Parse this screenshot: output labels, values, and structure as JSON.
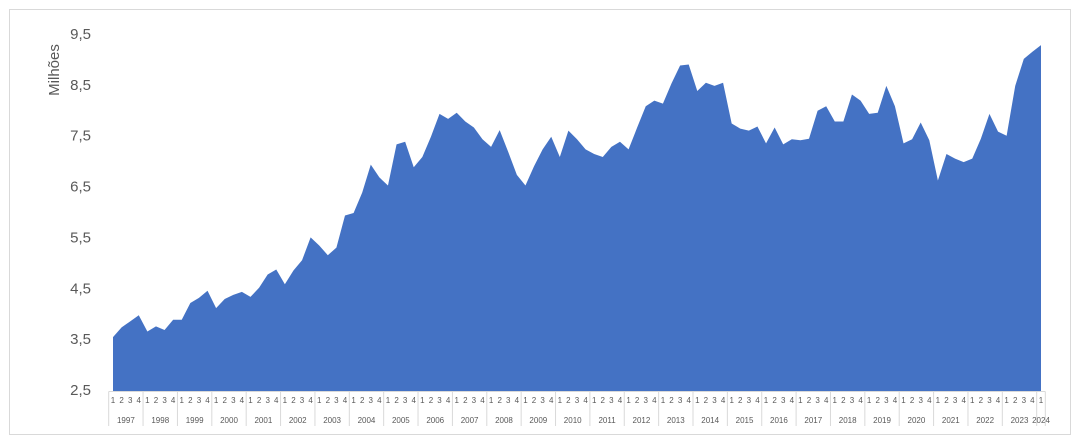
{
  "chart_data": {
    "type": "area",
    "ylabel": "Milhões",
    "color": "#4472c4",
    "ylim": [
      2.5,
      9.5
    ],
    "yticks": [
      {
        "value": 2.5,
        "label": "2,5"
      },
      {
        "value": 3.5,
        "label": "3,5"
      },
      {
        "value": 4.5,
        "label": "4,5"
      },
      {
        "value": 5.5,
        "label": "5,5"
      },
      {
        "value": 6.5,
        "label": "6,5"
      },
      {
        "value": 7.5,
        "label": "7,5"
      },
      {
        "value": 8.5,
        "label": "8,5"
      },
      {
        "value": 9.5,
        "label": "9,5"
      }
    ],
    "categories": [
      "1",
      "2",
      "3",
      "4",
      "1",
      "2",
      "3",
      "4",
      "1",
      "2",
      "3",
      "4",
      "1",
      "2",
      "3",
      "4",
      "1",
      "2",
      "3",
      "4",
      "1",
      "2",
      "3",
      "4",
      "1",
      "2",
      "3",
      "4",
      "1",
      "2",
      "3",
      "4",
      "1",
      "2",
      "3",
      "4",
      "1",
      "2",
      "3",
      "4",
      "1",
      "2",
      "3",
      "4",
      "1",
      "2",
      "3",
      "4",
      "1",
      "2",
      "3",
      "4",
      "1",
      "2",
      "3",
      "4",
      "1",
      "2",
      "3",
      "4",
      "1",
      "2",
      "3",
      "4",
      "1",
      "2",
      "3",
      "4",
      "1",
      "2",
      "3",
      "4",
      "1",
      "2",
      "3",
      "4",
      "1",
      "2",
      "3",
      "4",
      "1",
      "2",
      "3",
      "4",
      "1",
      "2",
      "3",
      "4",
      "1",
      "2",
      "3",
      "4",
      "1",
      "2",
      "3",
      "4",
      "1",
      "2",
      "3",
      "4",
      "1",
      "2",
      "3",
      "4",
      "1",
      "2",
      "3",
      "4",
      "1"
    ],
    "year_groups": [
      "1997",
      "1998",
      "1999",
      "2000",
      "2001",
      "2002",
      "2003",
      "2004",
      "2005",
      "2006",
      "2007",
      "2008",
      "2009",
      "2010",
      "2011",
      "2012",
      "2013",
      "2014",
      "2015",
      "2016",
      "2017",
      "2018",
      "2019",
      "2020",
      "2021",
      "2022",
      "2023",
      "2024"
    ],
    "values": [
      3.56,
      3.75,
      3.87,
      3.99,
      3.67,
      3.77,
      3.7,
      3.9,
      3.9,
      4.23,
      4.33,
      4.47,
      4.13,
      4.31,
      4.39,
      4.45,
      4.35,
      4.53,
      4.79,
      4.89,
      4.6,
      4.87,
      5.07,
      5.52,
      5.36,
      5.17,
      5.32,
      5.95,
      6.0,
      6.4,
      6.95,
      6.7,
      6.54,
      7.35,
      7.4,
      6.9,
      7.1,
      7.5,
      7.95,
      7.85,
      7.97,
      7.8,
      7.68,
      7.45,
      7.3,
      7.63,
      7.2,
      6.75,
      6.54,
      6.92,
      7.25,
      7.5,
      7.1,
      7.62,
      7.45,
      7.25,
      7.16,
      7.1,
      7.3,
      7.4,
      7.25,
      7.68,
      8.1,
      8.21,
      8.15,
      8.55,
      8.9,
      8.92,
      8.4,
      8.56,
      8.5,
      8.56,
      7.76,
      7.66,
      7.62,
      7.7,
      7.37,
      7.68,
      7.35,
      7.45,
      7.43,
      7.46,
      8.01,
      8.1,
      7.8,
      7.8,
      8.33,
      8.21,
      7.95,
      7.97,
      8.5,
      8.1,
      7.37,
      7.45,
      7.78,
      7.43,
      6.64,
      7.16,
      7.07,
      7.0,
      7.07,
      7.46,
      7.95,
      7.6,
      7.52,
      8.5,
      9.03,
      9.17,
      9.3
    ]
  }
}
